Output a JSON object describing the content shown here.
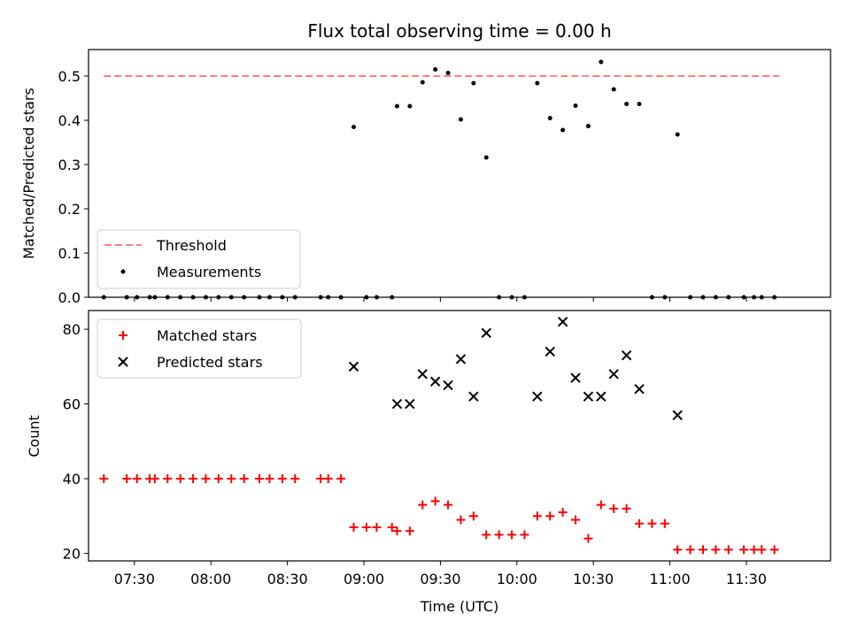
{
  "chart_data": [
    {
      "type": "scatter",
      "title": "Flux total observing time = 0.00 h",
      "xlabel": "",
      "ylabel": "Matched/Predicted stars",
      "ylim": [
        0,
        0.56
      ],
      "yticks": [
        "0.0",
        "0.1",
        "0.2",
        "0.3",
        "0.4",
        "0.5"
      ],
      "xlim": [
        "07:12",
        "12:03"
      ],
      "grid": false,
      "legend": "lower-left",
      "threshold": {
        "name": "Threshold",
        "value": 0.5,
        "x_range": [
          "07:18",
          "11:43"
        ],
        "color": "#ff8080"
      },
      "series": [
        {
          "name": "Measurements",
          "color": "#000000",
          "points": [
            [
              "07:18",
              0
            ],
            [
              "07:27",
              0
            ],
            [
              "07:31",
              0
            ],
            [
              "07:36",
              0
            ],
            [
              "07:38",
              0
            ],
            [
              "07:43",
              0
            ],
            [
              "07:48",
              0
            ],
            [
              "07:53",
              0
            ],
            [
              "07:58",
              0
            ],
            [
              "08:03",
              0
            ],
            [
              "08:08",
              0
            ],
            [
              "08:13",
              0
            ],
            [
              "08:19",
              0
            ],
            [
              "08:23",
              0
            ],
            [
              "08:28",
              0
            ],
            [
              "08:33",
              0
            ],
            [
              "08:43",
              0
            ],
            [
              "08:46",
              0
            ],
            [
              "08:51",
              0
            ],
            [
              "08:56",
              0.385
            ],
            [
              "09:01",
              0
            ],
            [
              "09:05",
              0
            ],
            [
              "09:11",
              0
            ],
            [
              "09:13",
              0.432
            ],
            [
              "09:18",
              0.432
            ],
            [
              "09:23",
              0.486
            ],
            [
              "09:28",
              0.515
            ],
            [
              "09:33",
              0.507
            ],
            [
              "09:38",
              0.402
            ],
            [
              "09:43",
              0.484
            ],
            [
              "09:48",
              0.316
            ],
            [
              "09:53",
              0
            ],
            [
              "09:58",
              0
            ],
            [
              "10:03",
              0
            ],
            [
              "10:08",
              0.484
            ],
            [
              "10:13",
              0.405
            ],
            [
              "10:18",
              0.378
            ],
            [
              "10:23",
              0.433
            ],
            [
              "10:28",
              0.387
            ],
            [
              "10:33",
              0.532
            ],
            [
              "10:38",
              0.47
            ],
            [
              "10:43",
              0.437
            ],
            [
              "10:48",
              0.437
            ],
            [
              "10:53",
              0
            ],
            [
              "10:58",
              0
            ],
            [
              "11:03",
              0.368
            ],
            [
              "11:08",
              0
            ],
            [
              "11:13",
              0
            ],
            [
              "11:18",
              0
            ],
            [
              "11:23",
              0
            ],
            [
              "11:29",
              0
            ],
            [
              "11:33",
              0
            ],
            [
              "11:36",
              0
            ],
            [
              "11:41",
              0
            ]
          ]
        }
      ]
    },
    {
      "type": "scatter",
      "title": "",
      "xlabel": "Time (UTC)",
      "ylabel": "Count",
      "ylim": [
        18,
        85
      ],
      "yticks": [
        "20",
        "40",
        "60",
        "80"
      ],
      "xlim": [
        "07:12",
        "12:03"
      ],
      "xticks": [
        "07:30",
        "08:00",
        "08:30",
        "09:00",
        "09:30",
        "10:00",
        "10:30",
        "11:00",
        "11:30"
      ],
      "grid": false,
      "legend": "upper-left",
      "series": [
        {
          "name": "Matched stars",
          "marker": "plus",
          "color": "#ff0000",
          "points": [
            [
              "07:18",
              40
            ],
            [
              "07:27",
              40
            ],
            [
              "07:31",
              40
            ],
            [
              "07:36",
              40
            ],
            [
              "07:38",
              40
            ],
            [
              "07:43",
              40
            ],
            [
              "07:48",
              40
            ],
            [
              "07:53",
              40
            ],
            [
              "07:58",
              40
            ],
            [
              "08:03",
              40
            ],
            [
              "08:08",
              40
            ],
            [
              "08:13",
              40
            ],
            [
              "08:19",
              40
            ],
            [
              "08:23",
              40
            ],
            [
              "08:28",
              40
            ],
            [
              "08:33",
              40
            ],
            [
              "08:43",
              40
            ],
            [
              "08:46",
              40
            ],
            [
              "08:51",
              40
            ],
            [
              "08:56",
              27
            ],
            [
              "09:01",
              27
            ],
            [
              "09:05",
              27
            ],
            [
              "09:11",
              27
            ],
            [
              "09:13",
              26
            ],
            [
              "09:18",
              26
            ],
            [
              "09:23",
              33
            ],
            [
              "09:28",
              34
            ],
            [
              "09:33",
              33
            ],
            [
              "09:38",
              29
            ],
            [
              "09:43",
              30
            ],
            [
              "09:48",
              25
            ],
            [
              "09:53",
              25
            ],
            [
              "09:58",
              25
            ],
            [
              "10:03",
              25
            ],
            [
              "10:08",
              30
            ],
            [
              "10:13",
              30
            ],
            [
              "10:18",
              31
            ],
            [
              "10:23",
              29
            ],
            [
              "10:28",
              24
            ],
            [
              "10:33",
              33
            ],
            [
              "10:38",
              32
            ],
            [
              "10:43",
              32
            ],
            [
              "10:48",
              28
            ],
            [
              "10:53",
              28
            ],
            [
              "10:58",
              28
            ],
            [
              "11:03",
              21
            ],
            [
              "11:08",
              21
            ],
            [
              "11:13",
              21
            ],
            [
              "11:18",
              21
            ],
            [
              "11:23",
              21
            ],
            [
              "11:29",
              21
            ],
            [
              "11:33",
              21
            ],
            [
              "11:36",
              21
            ],
            [
              "11:41",
              21
            ]
          ]
        },
        {
          "name": "Predicted stars",
          "marker": "x",
          "color": "#000000",
          "points": [
            [
              "08:56",
              70
            ],
            [
              "09:13",
              60
            ],
            [
              "09:18",
              60
            ],
            [
              "09:23",
              68
            ],
            [
              "09:28",
              66
            ],
            [
              "09:33",
              65
            ],
            [
              "09:38",
              72
            ],
            [
              "09:43",
              62
            ],
            [
              "09:48",
              79
            ],
            [
              "10:08",
              62
            ],
            [
              "10:13",
              74
            ],
            [
              "10:18",
              82
            ],
            [
              "10:23",
              67
            ],
            [
              "10:28",
              62
            ],
            [
              "10:33",
              62
            ],
            [
              "10:38",
              68
            ],
            [
              "10:43",
              73
            ],
            [
              "10:48",
              64
            ],
            [
              "11:03",
              57
            ]
          ]
        }
      ]
    }
  ]
}
